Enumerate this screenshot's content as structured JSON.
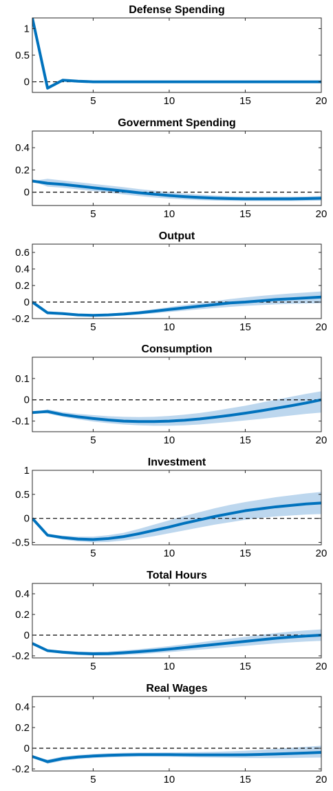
{
  "figure": {
    "background": "#ffffff",
    "line_color": "#0072BD",
    "band_color": "#BDD7EE",
    "zero_line_style": "dashed-black"
  },
  "chart_data": [
    {
      "type": "line",
      "title": "Defense Spending",
      "xlim": [
        1,
        20
      ],
      "ylim": [
        -0.2,
        1.2
      ],
      "xticks": [
        5,
        10,
        15,
        20
      ],
      "yticks": [
        0,
        0.5,
        1
      ],
      "ytick_labels": [
        "0",
        "0.5",
        "1"
      ],
      "grid": false,
      "zero_line": true,
      "x": [
        1,
        2,
        3,
        4,
        5,
        6,
        7,
        8,
        9,
        10,
        11,
        12,
        13,
        14,
        15,
        16,
        17,
        18,
        19,
        20
      ],
      "series": [
        {
          "values": [
            1.2,
            -0.12,
            0.03,
            0.01,
            0,
            0,
            0,
            0,
            0,
            0,
            0,
            0,
            0,
            0,
            0,
            0,
            0,
            0,
            0,
            0
          ]
        }
      ],
      "band": {
        "lower": [
          1.2,
          -0.13,
          0.02,
          0,
          0,
          0,
          0,
          0,
          0,
          0,
          0,
          0,
          0,
          0,
          0,
          0,
          0,
          0,
          0,
          0
        ],
        "upper": [
          1.2,
          -0.1,
          0.04,
          0.01,
          0,
          0,
          0,
          0,
          0,
          0,
          0,
          0,
          0,
          0,
          0,
          0,
          0,
          0,
          0,
          0
        ]
      }
    },
    {
      "type": "line",
      "title": "Government Spending",
      "xlim": [
        1,
        20
      ],
      "ylim": [
        -0.12,
        0.55
      ],
      "xticks": [
        5,
        10,
        15,
        20
      ],
      "yticks": [
        0,
        0.2,
        0.4
      ],
      "ytick_labels": [
        "0",
        "0.2",
        "0.4"
      ],
      "grid": false,
      "zero_line": true,
      "x": [
        1,
        2,
        3,
        4,
        5,
        6,
        7,
        8,
        9,
        10,
        11,
        12,
        13,
        14,
        15,
        16,
        17,
        18,
        19,
        20
      ],
      "series": [
        {
          "values": [
            0.1,
            0.08,
            0.07,
            0.055,
            0.04,
            0.025,
            0.01,
            -0.005,
            -0.018,
            -0.03,
            -0.04,
            -0.048,
            -0.054,
            -0.058,
            -0.06,
            -0.06,
            -0.06,
            -0.06,
            -0.058,
            -0.055
          ]
        }
      ],
      "band": {
        "lower": [
          0.1,
          0.05,
          0.04,
          0.025,
          0.01,
          -0.005,
          -0.02,
          -0.035,
          -0.048,
          -0.058,
          -0.066,
          -0.072,
          -0.076,
          -0.078,
          -0.08,
          -0.08,
          -0.08,
          -0.08,
          -0.078,
          -0.076
        ],
        "upper": [
          0.1,
          0.12,
          0.105,
          0.09,
          0.075,
          0.06,
          0.045,
          0.028,
          0.014,
          0.0,
          -0.012,
          -0.022,
          -0.03,
          -0.036,
          -0.04,
          -0.04,
          -0.04,
          -0.04,
          -0.038,
          -0.034
        ]
      }
    },
    {
      "type": "line",
      "title": "Output",
      "xlim": [
        1,
        20
      ],
      "ylim": [
        -0.2,
        0.7
      ],
      "xticks": [
        5,
        10,
        15,
        20
      ],
      "yticks": [
        -0.2,
        0,
        0.2,
        0.4,
        0.6
      ],
      "ytick_labels": [
        "-0.2",
        "0",
        "0.2",
        "0.4",
        "0.6"
      ],
      "grid": false,
      "zero_line": true,
      "x": [
        1,
        2,
        3,
        4,
        5,
        6,
        7,
        8,
        9,
        10,
        11,
        12,
        13,
        14,
        15,
        16,
        17,
        18,
        19,
        20
      ],
      "series": [
        {
          "values": [
            0.0,
            -0.13,
            -0.14,
            -0.155,
            -0.16,
            -0.155,
            -0.145,
            -0.13,
            -0.11,
            -0.09,
            -0.07,
            -0.05,
            -0.03,
            -0.01,
            0.0,
            0.015,
            0.03,
            0.04,
            0.05,
            0.06
          ]
        }
      ],
      "band": {
        "lower": [
          0.0,
          -0.14,
          -0.155,
          -0.17,
          -0.175,
          -0.17,
          -0.162,
          -0.15,
          -0.136,
          -0.12,
          -0.104,
          -0.088,
          -0.072,
          -0.058,
          -0.046,
          -0.036,
          -0.028,
          -0.022,
          -0.018,
          -0.015
        ],
        "upper": [
          0.0,
          -0.11,
          -0.125,
          -0.14,
          -0.145,
          -0.14,
          -0.128,
          -0.11,
          -0.086,
          -0.06,
          -0.036,
          -0.012,
          0.012,
          0.036,
          0.056,
          0.074,
          0.09,
          0.104,
          0.116,
          0.128
        ]
      }
    },
    {
      "type": "line",
      "title": "Consumption",
      "xlim": [
        1,
        20
      ],
      "ylim": [
        -0.15,
        0.2
      ],
      "xticks": [
        5,
        10,
        15,
        20
      ],
      "yticks": [
        -0.1,
        0,
        0.1
      ],
      "ytick_labels": [
        "-0.1",
        "0",
        "0.1"
      ],
      "grid": false,
      "zero_line": true,
      "x": [
        1,
        2,
        3,
        4,
        5,
        6,
        7,
        8,
        9,
        10,
        11,
        12,
        13,
        14,
        15,
        16,
        17,
        18,
        19,
        20
      ],
      "series": [
        {
          "values": [
            -0.06,
            -0.055,
            -0.07,
            -0.08,
            -0.088,
            -0.095,
            -0.1,
            -0.102,
            -0.102,
            -0.1,
            -0.096,
            -0.09,
            -0.082,
            -0.073,
            -0.063,
            -0.052,
            -0.04,
            -0.028,
            -0.015,
            0.0
          ]
        }
      ],
      "band": {
        "lower": [
          -0.06,
          -0.065,
          -0.08,
          -0.092,
          -0.102,
          -0.11,
          -0.116,
          -0.12,
          -0.122,
          -0.122,
          -0.12,
          -0.116,
          -0.11,
          -0.104,
          -0.097,
          -0.09,
          -0.082,
          -0.074,
          -0.066,
          -0.06
        ],
        "upper": [
          -0.06,
          -0.045,
          -0.058,
          -0.066,
          -0.072,
          -0.077,
          -0.08,
          -0.081,
          -0.08,
          -0.076,
          -0.07,
          -0.062,
          -0.052,
          -0.04,
          -0.028,
          -0.014,
          0.0,
          0.014,
          0.028,
          0.04
        ]
      }
    },
    {
      "type": "line",
      "title": "Investment",
      "xlim": [
        1,
        20
      ],
      "ylim": [
        -0.55,
        1.0
      ],
      "xticks": [
        5,
        10,
        15,
        20
      ],
      "yticks": [
        -0.5,
        0,
        0.5,
        1
      ],
      "ytick_labels": [
        "-0.5",
        "0",
        "0.5",
        "1"
      ],
      "grid": false,
      "zero_line": true,
      "x": [
        1,
        2,
        3,
        4,
        5,
        6,
        7,
        8,
        9,
        10,
        11,
        12,
        13,
        14,
        15,
        16,
        17,
        18,
        19,
        20
      ],
      "series": [
        {
          "values": [
            0.0,
            -0.35,
            -0.4,
            -0.43,
            -0.44,
            -0.42,
            -0.38,
            -0.32,
            -0.25,
            -0.18,
            -0.1,
            -0.03,
            0.04,
            0.1,
            0.16,
            0.2,
            0.24,
            0.27,
            0.3,
            0.32
          ]
        }
      ],
      "band": {
        "lower": [
          0.0,
          -0.38,
          -0.44,
          -0.48,
          -0.5,
          -0.49,
          -0.46,
          -0.42,
          -0.37,
          -0.31,
          -0.25,
          -0.19,
          -0.13,
          -0.08,
          -0.03,
          0.01,
          0.04,
          0.06,
          0.08,
          0.09
        ],
        "upper": [
          0.0,
          -0.32,
          -0.36,
          -0.38,
          -0.38,
          -0.35,
          -0.3,
          -0.22,
          -0.13,
          -0.04,
          0.05,
          0.13,
          0.21,
          0.28,
          0.34,
          0.39,
          0.44,
          0.48,
          0.52,
          0.55
        ]
      }
    },
    {
      "type": "line",
      "title": "Total Hours",
      "xlim": [
        1,
        20
      ],
      "ylim": [
        -0.22,
        0.5
      ],
      "xticks": [
        5,
        10,
        15,
        20
      ],
      "yticks": [
        -0.2,
        0,
        0.2,
        0.4
      ],
      "ytick_labels": [
        "-0.2",
        "0",
        "0.2",
        "0.4"
      ],
      "grid": false,
      "zero_line": true,
      "x": [
        1,
        2,
        3,
        4,
        5,
        6,
        7,
        8,
        9,
        10,
        11,
        12,
        13,
        14,
        15,
        16,
        17,
        18,
        19,
        20
      ],
      "series": [
        {
          "values": [
            -0.08,
            -0.15,
            -0.165,
            -0.175,
            -0.18,
            -0.178,
            -0.17,
            -0.16,
            -0.148,
            -0.135,
            -0.12,
            -0.105,
            -0.09,
            -0.075,
            -0.06,
            -0.045,
            -0.03,
            -0.018,
            -0.008,
            0.0
          ]
        }
      ],
      "band": {
        "lower": [
          -0.08,
          -0.16,
          -0.18,
          -0.192,
          -0.198,
          -0.198,
          -0.192,
          -0.184,
          -0.174,
          -0.164,
          -0.152,
          -0.14,
          -0.128,
          -0.116,
          -0.104,
          -0.092,
          -0.08,
          -0.07,
          -0.062,
          -0.055
        ],
        "upper": [
          -0.08,
          -0.14,
          -0.15,
          -0.158,
          -0.162,
          -0.158,
          -0.148,
          -0.136,
          -0.122,
          -0.106,
          -0.088,
          -0.07,
          -0.052,
          -0.034,
          -0.016,
          0.002,
          0.02,
          0.034,
          0.046,
          0.056
        ]
      }
    },
    {
      "type": "line",
      "title": "Real Wages",
      "xlim": [
        1,
        20
      ],
      "ylim": [
        -0.22,
        0.5
      ],
      "xticks": [
        5,
        10,
        15,
        20
      ],
      "yticks": [
        -0.2,
        0,
        0.2,
        0.4
      ],
      "ytick_labels": [
        "-0.2",
        "0",
        "0.2",
        "0.4"
      ],
      "grid": false,
      "zero_line": true,
      "x": [
        1,
        2,
        3,
        4,
        5,
        6,
        7,
        8,
        9,
        10,
        11,
        12,
        13,
        14,
        15,
        16,
        17,
        18,
        19,
        20
      ],
      "series": [
        {
          "values": [
            -0.08,
            -0.13,
            -0.1,
            -0.085,
            -0.075,
            -0.068,
            -0.064,
            -0.062,
            -0.062,
            -0.062,
            -0.063,
            -0.064,
            -0.064,
            -0.064,
            -0.063,
            -0.06,
            -0.056,
            -0.051,
            -0.046,
            -0.04
          ]
        }
      ],
      "band": {
        "lower": [
          -0.08,
          -0.15,
          -0.12,
          -0.105,
          -0.095,
          -0.088,
          -0.084,
          -0.082,
          -0.082,
          -0.083,
          -0.085,
          -0.088,
          -0.09,
          -0.092,
          -0.094,
          -0.095,
          -0.095,
          -0.094,
          -0.092,
          -0.09
        ],
        "upper": [
          -0.08,
          -0.11,
          -0.08,
          -0.065,
          -0.055,
          -0.048,
          -0.044,
          -0.042,
          -0.041,
          -0.04,
          -0.039,
          -0.037,
          -0.034,
          -0.03,
          -0.024,
          -0.016,
          -0.006,
          0.004,
          0.014,
          0.024
        ]
      }
    }
  ]
}
